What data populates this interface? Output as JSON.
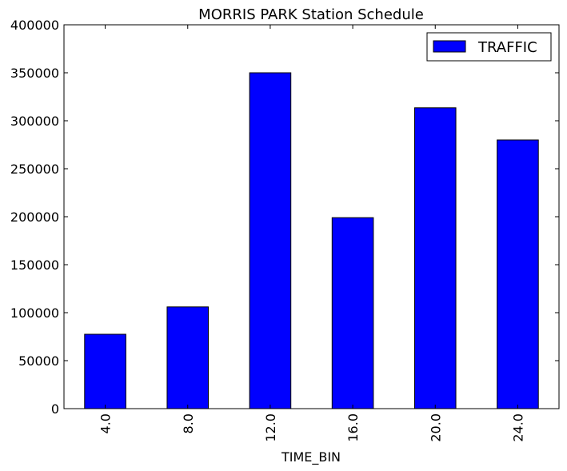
{
  "chart_data": {
    "type": "bar",
    "title": "MORRIS PARK Station Schedule",
    "xlabel": "TIME_BIN",
    "ylabel": "",
    "categories": [
      "4.0",
      "8.0",
      "12.0",
      "16.0",
      "20.0",
      "24.0"
    ],
    "series": [
      {
        "name": "TRAFFIC",
        "values": [
          77500,
          106000,
          350000,
          199000,
          313500,
          280000
        ],
        "color": "#0000ff"
      }
    ],
    "ylim": [
      0,
      400000
    ],
    "yticks": [
      0,
      50000,
      100000,
      150000,
      200000,
      250000,
      300000,
      350000,
      400000
    ],
    "grid": false,
    "legend_position": "top-right"
  }
}
